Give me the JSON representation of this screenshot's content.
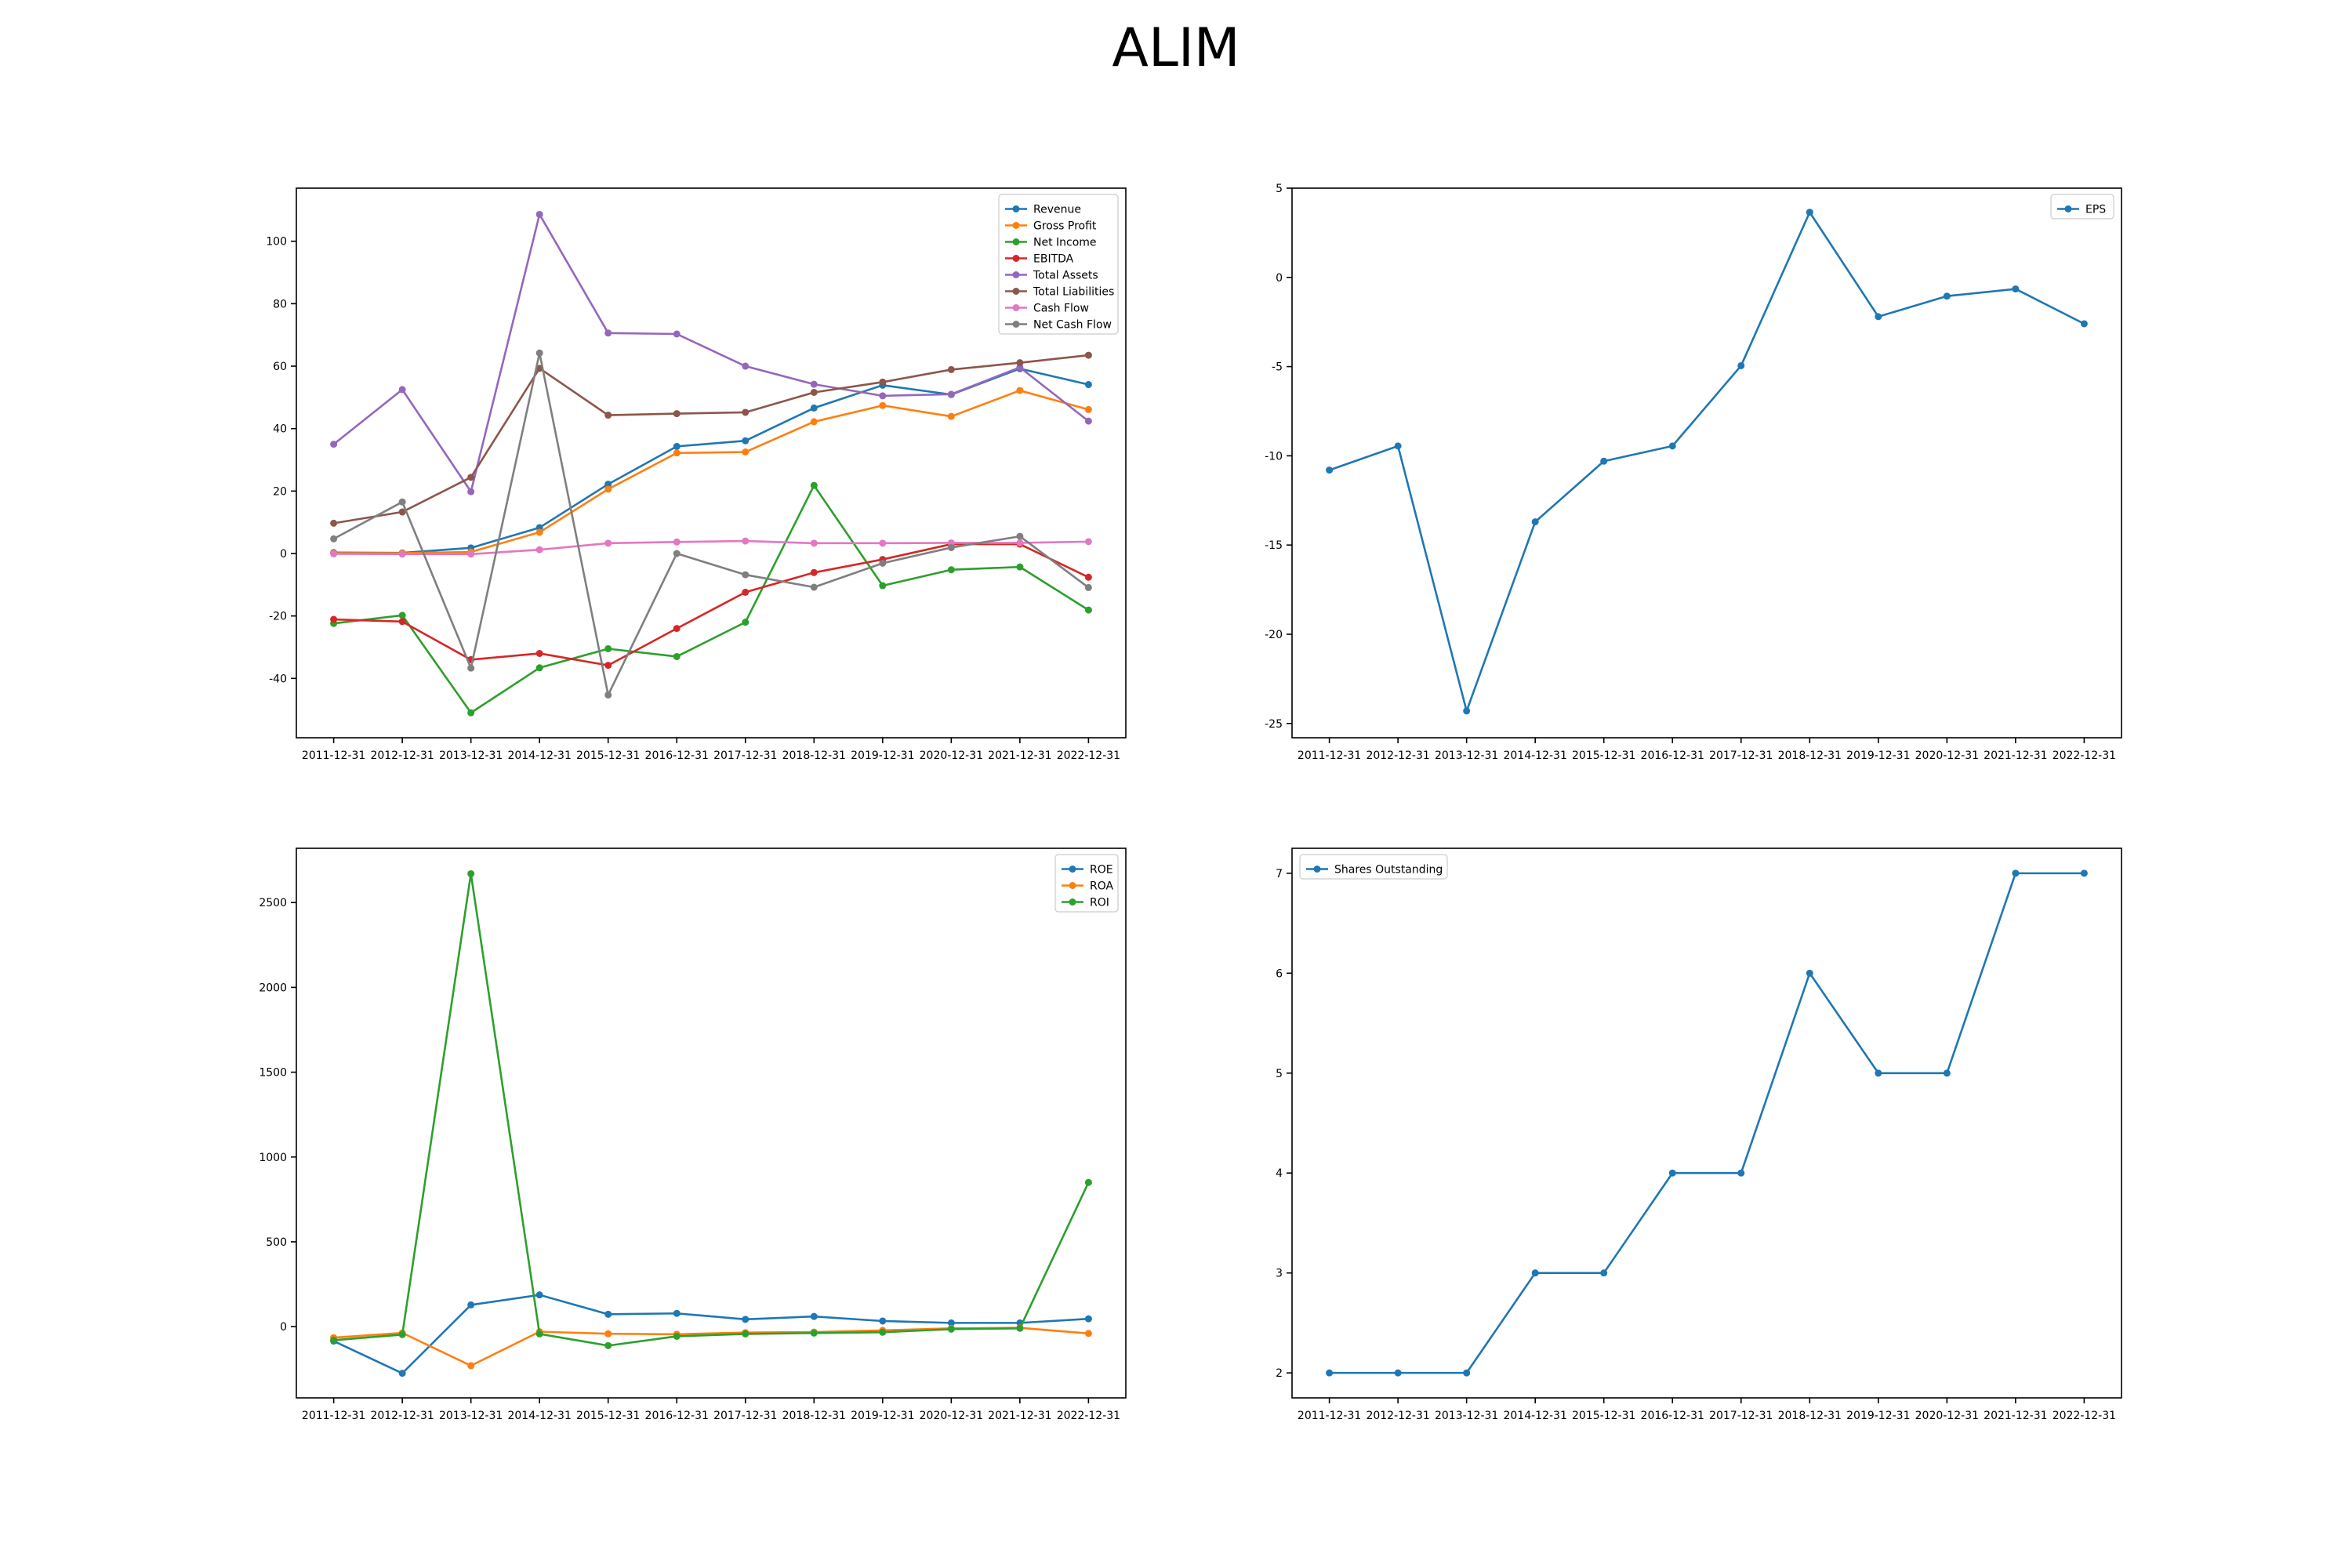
{
  "page": {
    "title": "ALIM"
  },
  "colors": {
    "c0": "#1f77b4",
    "c1": "#ff7f0e",
    "c2": "#2ca02c",
    "c3": "#d62728",
    "c4": "#9467bd",
    "c5": "#8c564b",
    "c6": "#e377c2",
    "c7": "#7f7f7f"
  },
  "chart_data": [
    {
      "type": "line",
      "title": "",
      "xlabel": "",
      "ylabel": "",
      "grid": false,
      "legend": "top-right",
      "ylim": [
        -59,
        117
      ],
      "yticks": [
        -40,
        -20,
        0,
        20,
        40,
        60,
        80,
        100
      ],
      "x": [
        "2011-12-31",
        "2012-12-31",
        "2013-12-31",
        "2014-12-31",
        "2015-12-31",
        "2016-12-31",
        "2017-12-31",
        "2018-12-31",
        "2019-12-31",
        "2020-12-31",
        "2021-12-31",
        "2022-12-31"
      ],
      "series": [
        {
          "name": "Revenue",
          "color": "#1f77b4",
          "values": [
            0.3,
            0.2,
            1.8,
            8.3,
            22.2,
            34.3,
            36.1,
            46.6,
            53.9,
            50.9,
            59.2,
            54.1
          ]
        },
        {
          "name": "Gross Profit",
          "color": "#ff7f0e",
          "values": [
            0.1,
            0.1,
            0.5,
            6.8,
            20.6,
            32.2,
            32.5,
            42.2,
            47.4,
            43.9,
            52.2,
            46.1
          ]
        },
        {
          "name": "Net Income",
          "color": "#2ca02c",
          "values": [
            -22.4,
            -19.8,
            -51.0,
            -36.6,
            -30.5,
            -33.0,
            -22.0,
            21.8,
            -10.3,
            -5.2,
            -4.3,
            -18.1
          ]
        },
        {
          "name": "EBITDA",
          "color": "#d62728",
          "values": [
            -21.1,
            -21.8,
            -34.0,
            -32.0,
            -35.8,
            -24.0,
            -12.4,
            -6.1,
            -1.9,
            3.0,
            3.0,
            -7.6
          ]
        },
        {
          "name": "Total Assets",
          "color": "#9467bd",
          "values": [
            35.0,
            52.5,
            19.8,
            108.6,
            70.6,
            70.3,
            60.0,
            54.2,
            50.5,
            51.0,
            59.6,
            42.4
          ]
        },
        {
          "name": "Total Liabilities",
          "color": "#8c564b",
          "values": [
            9.7,
            13.3,
            24.4,
            59.3,
            44.3,
            44.8,
            45.2,
            51.6,
            54.9,
            58.9,
            61.1,
            63.5
          ]
        },
        {
          "name": "Cash Flow",
          "color": "#e377c2",
          "values": [
            -0.1,
            -0.2,
            -0.2,
            1.2,
            3.3,
            3.7,
            4.0,
            3.3,
            3.3,
            3.4,
            3.4,
            3.8
          ]
        },
        {
          "name": "Net Cash Flow",
          "color": "#7f7f7f",
          "values": [
            4.7,
            16.5,
            -36.7,
            64.2,
            -45.3,
            0.0,
            -6.8,
            -10.8,
            -3.1,
            1.9,
            5.5,
            -10.9
          ]
        }
      ]
    },
    {
      "type": "line",
      "title": "",
      "xlabel": "",
      "ylabel": "",
      "grid": false,
      "legend": "top-right",
      "ylim": [
        -25.8,
        5
      ],
      "yticks": [
        -25,
        -20,
        -15,
        -10,
        -5,
        0,
        5
      ],
      "x": [
        "2011-12-31",
        "2012-12-31",
        "2013-12-31",
        "2014-12-31",
        "2015-12-31",
        "2016-12-31",
        "2017-12-31",
        "2018-12-31",
        "2019-12-31",
        "2020-12-31",
        "2021-12-31",
        "2022-12-31"
      ],
      "series": [
        {
          "name": "EPS",
          "color": "#1f77b4",
          "values": [
            -10.8,
            -9.45,
            -24.3,
            -13.7,
            -10.3,
            -9.45,
            -4.95,
            3.65,
            -2.2,
            -1.05,
            -0.65,
            -2.6
          ]
        }
      ]
    },
    {
      "type": "line",
      "title": "",
      "xlabel": "",
      "ylabel": "",
      "grid": false,
      "legend": "top-right",
      "ylim": [
        -420,
        2820
      ],
      "yticks": [
        0,
        500,
        1000,
        1500,
        2000,
        2500
      ],
      "x": [
        "2011-12-31",
        "2012-12-31",
        "2013-12-31",
        "2014-12-31",
        "2015-12-31",
        "2016-12-31",
        "2017-12-31",
        "2018-12-31",
        "2019-12-31",
        "2020-12-31",
        "2021-12-31",
        "2022-12-31"
      ],
      "series": [
        {
          "name": "ROE",
          "color": "#1f77b4",
          "values": [
            -85,
            -275,
            128,
            187,
            73,
            78,
            43,
            60,
            33,
            22,
            22,
            46
          ]
        },
        {
          "name": "ROA",
          "color": "#ff7f0e",
          "values": [
            -65,
            -37,
            -230,
            -30,
            -42,
            -45,
            -35,
            -32,
            -22,
            -10,
            -7,
            -40
          ]
        },
        {
          "name": "ROI",
          "color": "#2ca02c",
          "values": [
            -80,
            -47,
            2670,
            -43,
            -112,
            -57,
            -43,
            -38,
            -33,
            -15,
            -10,
            850
          ]
        }
      ]
    },
    {
      "type": "line",
      "title": "",
      "xlabel": "",
      "ylabel": "",
      "grid": false,
      "legend": "top-left",
      "ylim": [
        1.75,
        7.25
      ],
      "yticks": [
        2,
        3,
        4,
        5,
        6,
        7
      ],
      "x": [
        "2011-12-31",
        "2012-12-31",
        "2013-12-31",
        "2014-12-31",
        "2015-12-31",
        "2016-12-31",
        "2017-12-31",
        "2018-12-31",
        "2019-12-31",
        "2020-12-31",
        "2021-12-31",
        "2022-12-31"
      ],
      "series": [
        {
          "name": "Shares Outstanding",
          "color": "#1f77b4",
          "values": [
            2,
            2,
            2,
            3,
            3,
            4,
            4,
            6,
            5,
            5,
            7,
            7
          ]
        }
      ]
    }
  ]
}
